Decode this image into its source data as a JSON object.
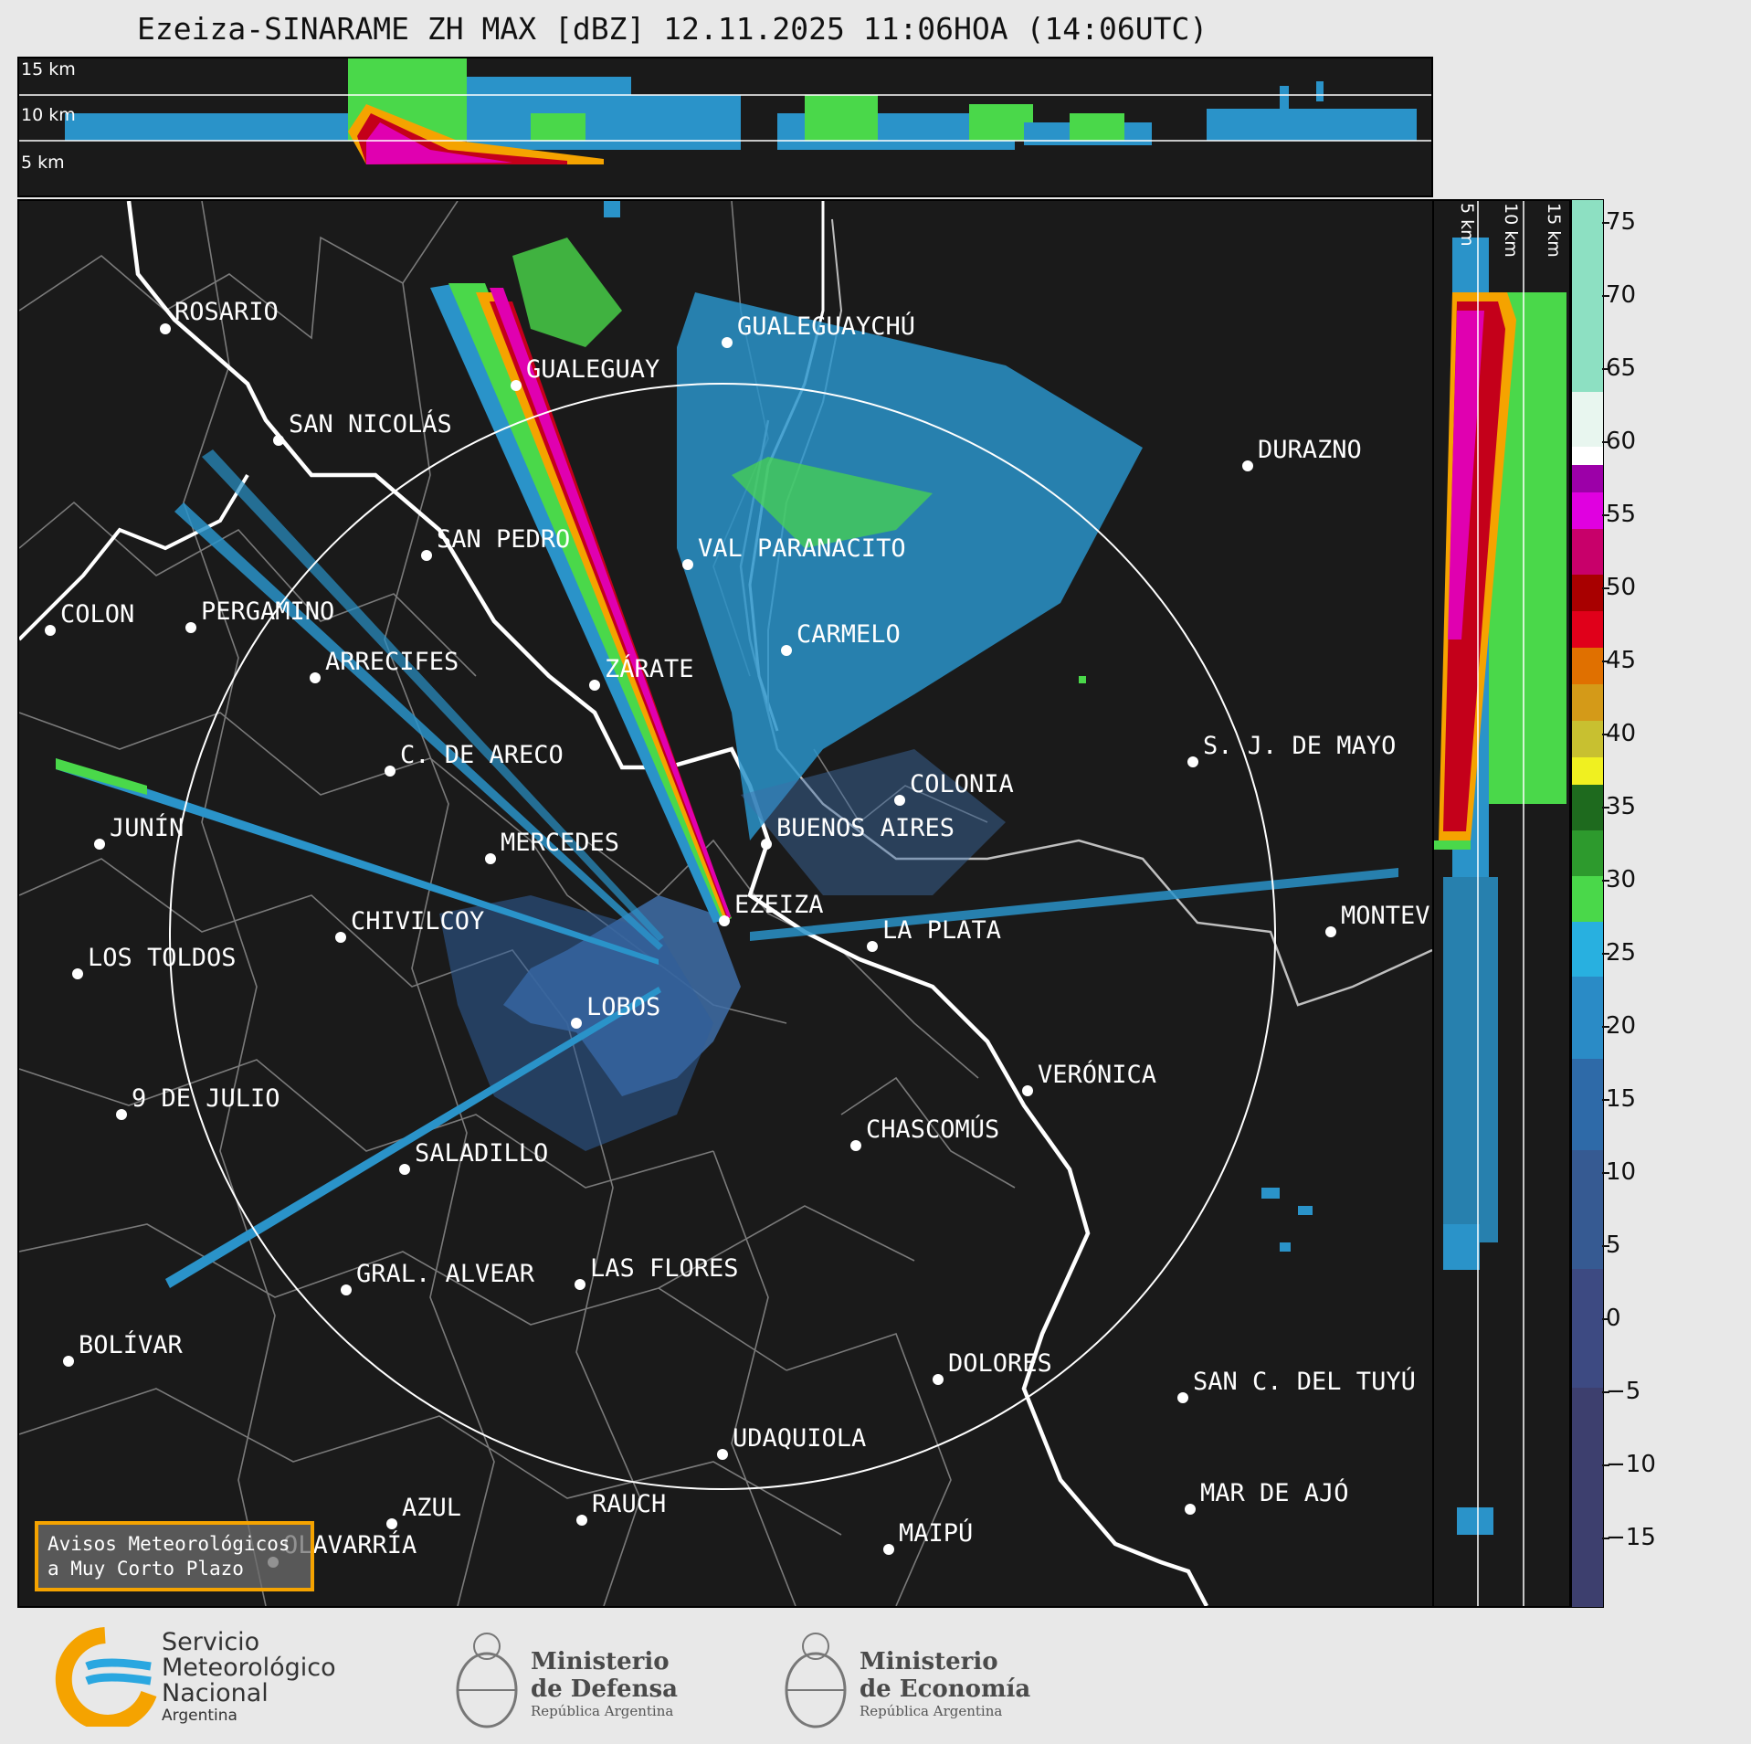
{
  "header": {
    "title": "Ezeiza-SINARAME ZH MAX [dBZ] 12.11.2025 11:06HOA (14:06UTC)"
  },
  "top_panel": {
    "height_labels": [
      "15 km",
      "10 km",
      "5 km"
    ]
  },
  "side_panel": {
    "height_labels": [
      "5 km",
      "10 km",
      "15 km"
    ]
  },
  "colorbar": {
    "ticks": [
      "75",
      "70",
      "65",
      "60",
      "55",
      "50",
      "45",
      "40",
      "35",
      "30",
      "25",
      "20",
      "15",
      "10",
      "5",
      "0",
      "−5",
      "−10",
      "−15"
    ],
    "range_dbz": [
      -20,
      77
    ]
  },
  "map": {
    "cities": [
      {
        "name": "ROSARIO"
      },
      {
        "name": "GUALEGUAYCHÚ"
      },
      {
        "name": "GUALEGUAY"
      },
      {
        "name": "SAN NICOLÁS"
      },
      {
        "name": "DURAZNO"
      },
      {
        "name": "SAN PEDRO"
      },
      {
        "name": "VAL PARANACITO"
      },
      {
        "name": "COLON"
      },
      {
        "name": "PERGAMINO"
      },
      {
        "name": "CARMELO"
      },
      {
        "name": "ARRECIFES"
      },
      {
        "name": "ZÁRATE"
      },
      {
        "name": "S. J. DE MAYO"
      },
      {
        "name": "C. DE ARECO"
      },
      {
        "name": "COLONIA"
      },
      {
        "name": "JUNÍN"
      },
      {
        "name": "BUENOS AIRES"
      },
      {
        "name": "MERCEDES"
      },
      {
        "name": "EZEIZA"
      },
      {
        "name": "MONTEV"
      },
      {
        "name": "CHIVILCOY"
      },
      {
        "name": "LA PLATA"
      },
      {
        "name": "LOS TOLDOS"
      },
      {
        "name": "LOBOS"
      },
      {
        "name": "VERÓNICA"
      },
      {
        "name": "9 DE JULIO"
      },
      {
        "name": "CHASCOMÚS"
      },
      {
        "name": "SALADILLO"
      },
      {
        "name": "GRAL. ALVEAR"
      },
      {
        "name": "LAS FLORES"
      },
      {
        "name": "BOLÍVAR"
      },
      {
        "name": "DOLORES"
      },
      {
        "name": "SAN C. DEL TUYÚ"
      },
      {
        "name": "UDAQUIOLA"
      },
      {
        "name": "MAR DE AJÓ"
      },
      {
        "name": "AZUL"
      },
      {
        "name": "RAUCH"
      },
      {
        "name": "OLAVARRÍA"
      },
      {
        "name": "MAIPÚ"
      }
    ],
    "warning_box": {
      "line1": "Avisos Meteorológicos",
      "line2": "a Muy Corto Plazo"
    }
  },
  "footer": {
    "smn": {
      "line1": "Servicio",
      "line2": "Meteorológico",
      "line3": "Nacional",
      "line4": "Argentina"
    },
    "defensa": {
      "line1": "Ministerio",
      "line2": "de Defensa",
      "line3": "República Argentina"
    },
    "economia": {
      "line1": "Ministerio",
      "line2": "de Economía",
      "line3": "República Argentina"
    }
  }
}
